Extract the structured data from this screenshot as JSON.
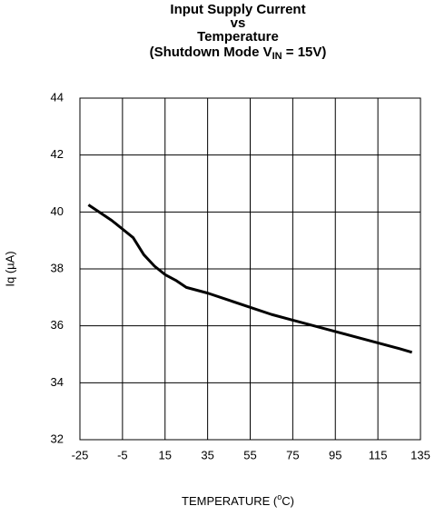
{
  "chart_data": {
    "type": "line",
    "title": [
      "Input Supply Current",
      "vs",
      "Temperature"
    ],
    "title_line4": [
      "(Shutdown Mode V",
      "IN",
      " = 15V)"
    ],
    "xlabel": [
      "TEMPERATURE (",
      "o",
      "C)"
    ],
    "ylabel": "Iq (µA)",
    "x": [
      -21,
      -15,
      -10,
      -5,
      0,
      5,
      10,
      15,
      20,
      25,
      35,
      45,
      55,
      65,
      75,
      85,
      95,
      105,
      115,
      125,
      131
    ],
    "series": [
      {
        "name": "Iq",
        "color": "#000000",
        "values": [
          40.25,
          39.95,
          39.7,
          39.4,
          39.1,
          38.5,
          38.1,
          37.8,
          37.6,
          37.35,
          37.15,
          36.9,
          36.65,
          36.4,
          36.2,
          36.0,
          35.8,
          35.6,
          35.4,
          35.2,
          35.07
        ]
      }
    ],
    "xlim": [
      -25,
      135
    ],
    "xticks": [
      -25,
      -5,
      15,
      35,
      55,
      75,
      95,
      115,
      135
    ],
    "ylim": [
      32,
      44
    ],
    "yticks": [
      32,
      34,
      36,
      38,
      40,
      42,
      44
    ],
    "grid": true
  }
}
